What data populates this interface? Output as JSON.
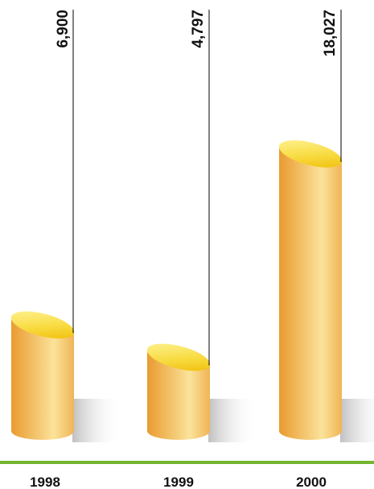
{
  "chart_data": {
    "type": "bar",
    "title": "",
    "xlabel": "",
    "ylabel": "",
    "categories": [
      "1998",
      "1999",
      "2000"
    ],
    "values": [
      6900,
      4797,
      18027
    ],
    "value_labels": [
      "6,900",
      "4,797",
      "18,027"
    ],
    "ylim": [
      0,
      18027
    ],
    "grid": false,
    "legend": "none"
  },
  "colors": {
    "bar_dark": "#eba033",
    "bar_light": "#fbe39a",
    "cap_light": "#fff27a",
    "cap_dark": "#f3c100",
    "baseline": "#74b530",
    "shadow": "#c8c8c8",
    "leader_line": "#000000",
    "text": "#111111"
  }
}
